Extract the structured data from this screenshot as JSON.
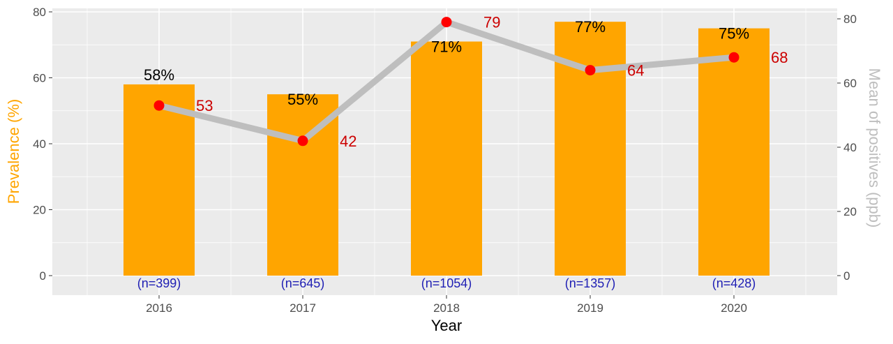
{
  "chart_data": {
    "type": "bar",
    "categories": [
      "2016",
      "2017",
      "2018",
      "2019",
      "2020"
    ],
    "xlabel": "Year",
    "ylabel_left": "Prevalence (%)",
    "ylabel_right": "Mean of positives (ppb)",
    "ylim_left": [
      0,
      80
    ],
    "ylim_right": [
      0,
      80
    ],
    "yticks_left": [
      "0",
      "20",
      "40",
      "60",
      "80"
    ],
    "yticks_right": [
      "0",
      "20",
      "40",
      "60",
      "80"
    ],
    "grid": true,
    "series": [
      {
        "type": "bar",
        "axis": "left",
        "values": [
          58,
          55,
          71,
          77,
          75
        ],
        "labels": [
          "58%",
          "55%",
          "71%",
          "77%",
          "75%"
        ]
      },
      {
        "type": "line",
        "axis": "right",
        "values": [
          53,
          42,
          79,
          64,
          68
        ],
        "labels": [
          "53",
          "42",
          "79",
          "64",
          "68"
        ]
      }
    ],
    "sample_sizes": [
      "(n=399)",
      "(n=645)",
      "(n=1054)",
      "(n=1357)",
      "(n=428)"
    ],
    "colors": {
      "bar": "#FFA500",
      "line": "#BEBEBE",
      "point": "#FF0000",
      "point_label": "#CC0000",
      "n_label": "#1F1FB4",
      "left_axis_title": "#FFA500",
      "right_axis_title": "#BEBEBE",
      "panel": "#EBEBEB",
      "grid": "#FFFFFF"
    }
  }
}
